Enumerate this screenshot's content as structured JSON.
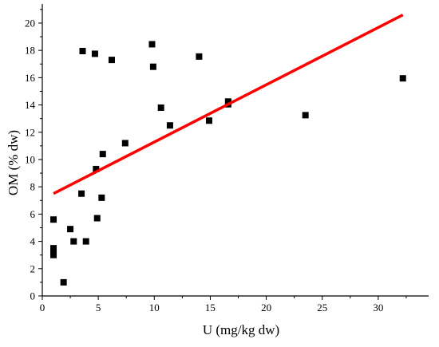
{
  "chart_data": {
    "type": "scatter",
    "title": "",
    "xlabel": "U (mg/kg dw)",
    "ylabel": "OM (% dw)",
    "xlim": [
      0,
      34.5
    ],
    "ylim": [
      0,
      21.4
    ],
    "xticks": [
      "0",
      "5",
      "10",
      "15",
      "20",
      "25",
      "30"
    ],
    "yticks": [
      "0",
      "2",
      "4",
      "6",
      "8",
      "10",
      "12",
      "14",
      "16",
      "18",
      "20"
    ],
    "grid": false,
    "legend": "none",
    "series": [
      {
        "type": "scatter",
        "marker": "square",
        "color": "#000000",
        "points": [
          {
            "x": 1.0,
            "y": 5.6
          },
          {
            "x": 1.0,
            "y": 3.5
          },
          {
            "x": 1.0,
            "y": 3.25
          },
          {
            "x": 1.0,
            "y": 3.0
          },
          {
            "x": 1.9,
            "y": 1.0
          },
          {
            "x": 2.5,
            "y": 4.9
          },
          {
            "x": 2.8,
            "y": 4.0
          },
          {
            "x": 3.5,
            "y": 7.5
          },
          {
            "x": 3.6,
            "y": 17.95
          },
          {
            "x": 3.9,
            "y": 4.0
          },
          {
            "x": 4.7,
            "y": 17.75
          },
          {
            "x": 4.8,
            "y": 9.3
          },
          {
            "x": 4.9,
            "y": 5.7
          },
          {
            "x": 5.3,
            "y": 7.2
          },
          {
            "x": 5.4,
            "y": 10.4
          },
          {
            "x": 6.2,
            "y": 17.3
          },
          {
            "x": 7.4,
            "y": 11.2
          },
          {
            "x": 9.8,
            "y": 18.45
          },
          {
            "x": 9.9,
            "y": 16.8
          },
          {
            "x": 10.6,
            "y": 13.8
          },
          {
            "x": 11.4,
            "y": 12.5
          },
          {
            "x": 14.0,
            "y": 17.55
          },
          {
            "x": 14.9,
            "y": 12.85
          },
          {
            "x": 16.6,
            "y": 14.05
          },
          {
            "x": 16.6,
            "y": 14.25
          },
          {
            "x": 23.5,
            "y": 13.25
          },
          {
            "x": 32.2,
            "y": 15.95
          }
        ]
      },
      {
        "type": "line",
        "color": "#ff0000",
        "points": [
          {
            "x": 1.0,
            "y": 7.5
          },
          {
            "x": 32.2,
            "y": 20.6
          }
        ]
      }
    ]
  }
}
